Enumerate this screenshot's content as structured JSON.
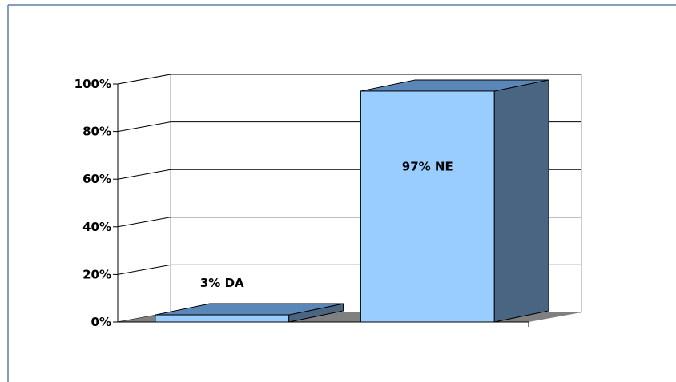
{
  "chart_data": {
    "type": "bar",
    "style": "3d-column",
    "categories": [
      "DA",
      "NE"
    ],
    "values": [
      3,
      97
    ],
    "data_labels": [
      "3% DA",
      "97% NE"
    ],
    "y_tick_labels": [
      "0%",
      "20%",
      "40%",
      "60%",
      "80%",
      "100%"
    ],
    "ylim": [
      0,
      100
    ],
    "grid": true,
    "legend": "none",
    "title": "",
    "xlabel": "",
    "ylabel": "",
    "colors": {
      "front": "#99CCFF",
      "top": "#5B86B8",
      "side": "#4A6582",
      "floor": "#808080",
      "border": "#5B7FA6"
    }
  }
}
